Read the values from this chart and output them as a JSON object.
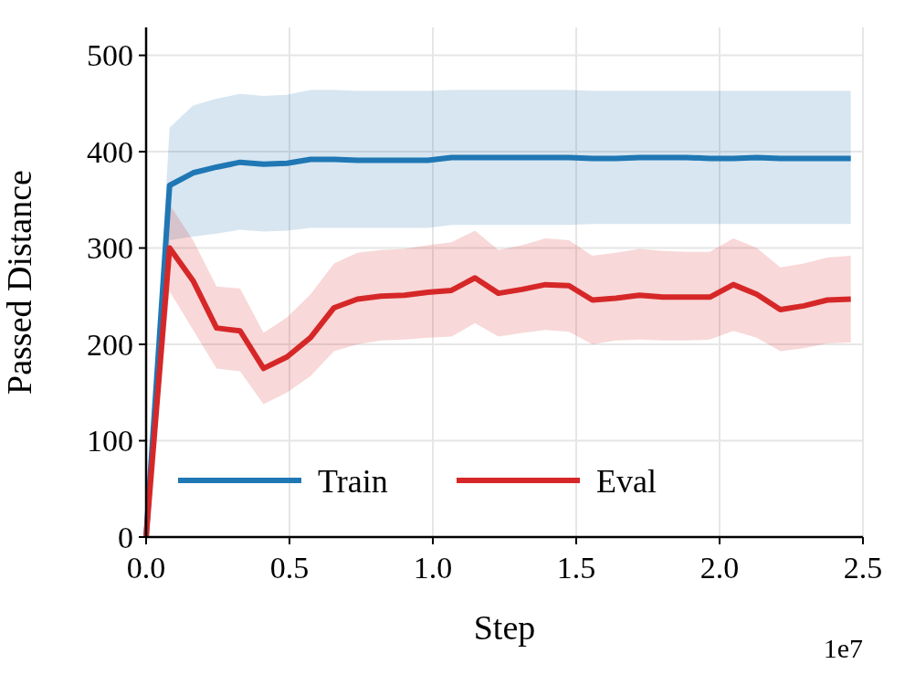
{
  "chart_data": {
    "type": "line",
    "xlabel": "Step",
    "ylabel": "Passed Distance",
    "x": [
      0,
      0.08192,
      0.16384,
      0.24576,
      0.32768,
      0.4096,
      0.49152,
      0.57344,
      0.65536,
      0.73728,
      0.8192,
      0.90112,
      0.98304,
      1.06496,
      1.14688,
      1.2288,
      1.31072,
      1.39264,
      1.47456,
      1.55648,
      1.6384,
      1.72032,
      1.80224,
      1.88416,
      1.96608,
      2.048,
      2.12992,
      2.21184,
      2.29376,
      2.37568,
      2.4576
    ],
    "series": [
      {
        "name": "Train",
        "color": "#1f77b4",
        "values": [
          0,
          365,
          378,
          384,
          389,
          387,
          388,
          392,
          392,
          391,
          391,
          391,
          391,
          394,
          394,
          394,
          394,
          394,
          394,
          393,
          393,
          394,
          394,
          394,
          393,
          393,
          394,
          393,
          393,
          393,
          393
        ],
        "lower": [
          0,
          308,
          312,
          315,
          319,
          317,
          318,
          321,
          321,
          321,
          321,
          321,
          321,
          324,
          324,
          324,
          324,
          324,
          324,
          325,
          325,
          325,
          325,
          325,
          325,
          325,
          325,
          325,
          325,
          325,
          325
        ],
        "upper": [
          0,
          425,
          448,
          455,
          460,
          458,
          459,
          464,
          464,
          463,
          463,
          463,
          463,
          464,
          464,
          464,
          464,
          464,
          464,
          463,
          463,
          463,
          463,
          463,
          463,
          463,
          463,
          463,
          463,
          463,
          463
        ]
      },
      {
        "name": "Eval",
        "color": "#d62728",
        "values": [
          0,
          300,
          266,
          217,
          214,
          175,
          187,
          207,
          238,
          247,
          250,
          251,
          254,
          256,
          269,
          253,
          257,
          262,
          261,
          246,
          248,
          251,
          249,
          249,
          249,
          262,
          252,
          236,
          240,
          246,
          247
        ],
        "lower": [
          0,
          255,
          215,
          175,
          172,
          138,
          150,
          167,
          193,
          200,
          204,
          205,
          207,
          208,
          222,
          208,
          212,
          215,
          213,
          200,
          204,
          205,
          204,
          204,
          205,
          214,
          207,
          193,
          196,
          201,
          202
        ],
        "upper": [
          0,
          345,
          308,
          260,
          258,
          212,
          228,
          252,
          284,
          295,
          298,
          299,
          303,
          306,
          318,
          298,
          303,
          310,
          308,
          292,
          295,
          299,
          297,
          296,
          296,
          310,
          300,
          280,
          284,
          290,
          292
        ]
      }
    ],
    "xlim": [
      0,
      2.5
    ],
    "xticks": [
      {
        "value": 0,
        "label": "0.0"
      },
      {
        "value": 0.5,
        "label": "0.5"
      },
      {
        "value": 1,
        "label": "1.0"
      },
      {
        "value": 1.5,
        "label": "1.5"
      },
      {
        "value": 2,
        "label": "2.0"
      },
      {
        "value": 2.5,
        "label": "2.5"
      }
    ],
    "ylim": [
      0,
      529
    ],
    "yticks": [
      0,
      100,
      200,
      300,
      400,
      500
    ],
    "grid": true,
    "legend": "bottom left",
    "line_style": "solid",
    "annotations": [
      "1e7"
    ]
  }
}
